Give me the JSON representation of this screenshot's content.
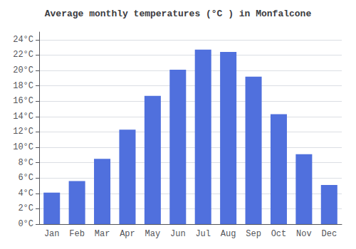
{
  "chart_data": {
    "type": "bar",
    "title": "Average monthly temperatures (°C ) in Monfalcone",
    "categories": [
      "Jan",
      "Feb",
      "Mar",
      "Apr",
      "May",
      "Jun",
      "Jul",
      "Aug",
      "Sep",
      "Oct",
      "Nov",
      "Dec"
    ],
    "values": [
      4.1,
      5.6,
      8.5,
      12.3,
      16.7,
      20.1,
      22.7,
      22.4,
      19.2,
      14.3,
      9.1,
      5.1
    ],
    "ylim": [
      0,
      25
    ],
    "yticks": [
      {
        "value": 0,
        "label": "0°C"
      },
      {
        "value": 2,
        "label": "2°C"
      },
      {
        "value": 4,
        "label": "4°C"
      },
      {
        "value": 6,
        "label": "6°C"
      },
      {
        "value": 8,
        "label": "8°C"
      },
      {
        "value": 10,
        "label": "10°C"
      },
      {
        "value": 12,
        "label": "12°C"
      },
      {
        "value": 14,
        "label": "14°C"
      },
      {
        "value": 16,
        "label": "16°C"
      },
      {
        "value": 18,
        "label": "18°C"
      },
      {
        "value": 20,
        "label": "20°C"
      },
      {
        "value": 22,
        "label": "22°C"
      },
      {
        "value": 24,
        "label": "24°C"
      }
    ],
    "grid": true
  }
}
